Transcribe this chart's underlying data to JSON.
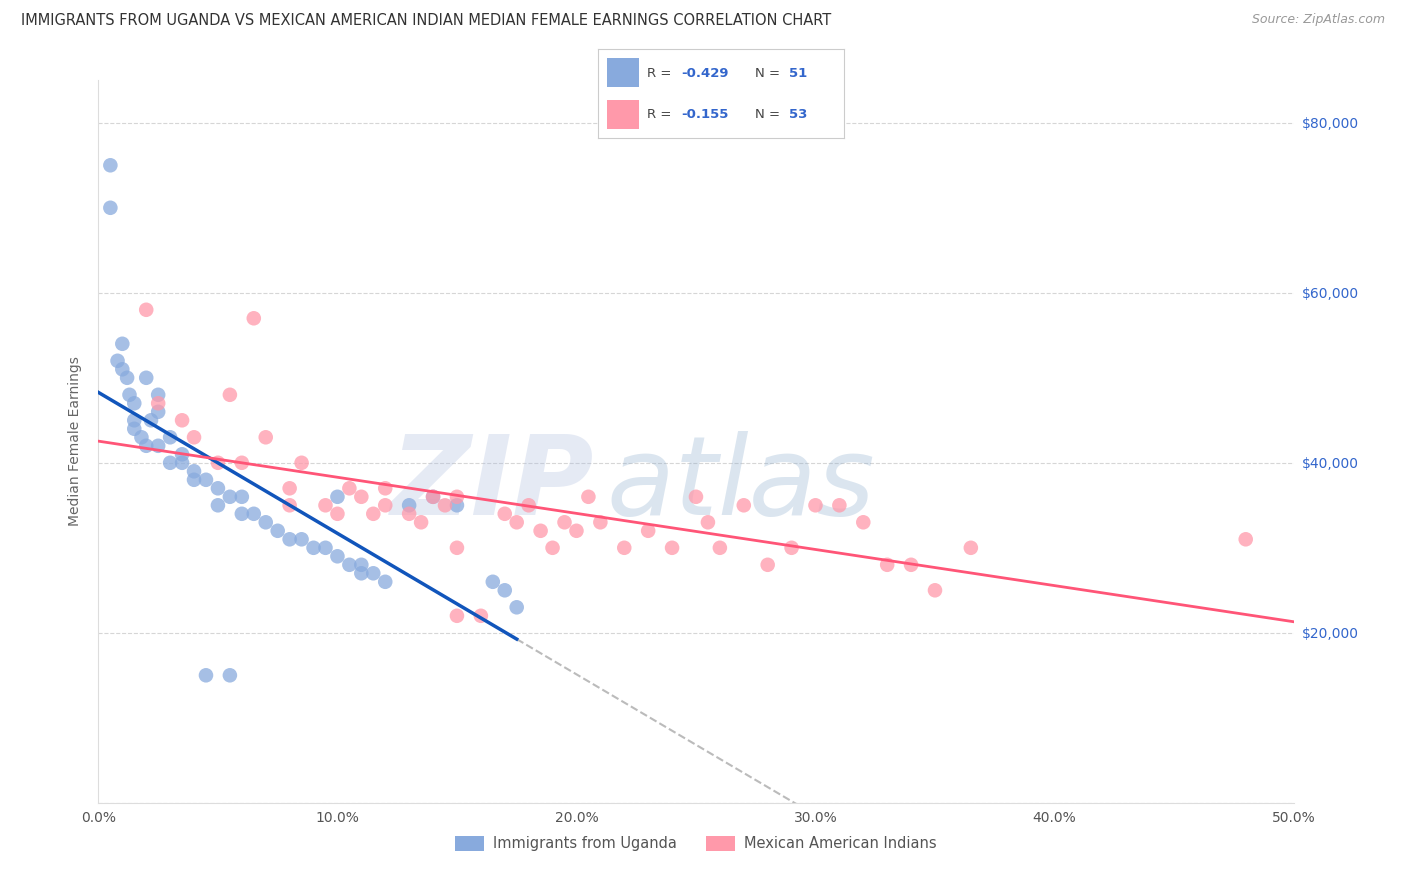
{
  "title": "IMMIGRANTS FROM UGANDA VS MEXICAN AMERICAN INDIAN MEDIAN FEMALE EARNINGS CORRELATION CHART",
  "source": "Source: ZipAtlas.com",
  "ylabel": "Median Female Earnings",
  "xlabel_ticks": [
    "0.0%",
    "10.0%",
    "20.0%",
    "30.0%",
    "40.0%",
    "50.0%"
  ],
  "xlabel_vals": [
    0,
    10,
    20,
    30,
    40,
    50
  ],
  "ylabel_ticks": [
    "$80,000",
    "$60,000",
    "$40,000",
    "$20,000"
  ],
  "ylabel_vals": [
    80000,
    60000,
    40000,
    20000
  ],
  "watermark_zip": "ZIP",
  "watermark_atlas": "atlas",
  "legend_label_uganda": "Immigrants from Uganda",
  "legend_label_mexican": "Mexican American Indians",
  "blue_scatter_color": "#88AADD",
  "pink_scatter_color": "#FF99AA",
  "blue_line_color": "#1155BB",
  "pink_line_color": "#FF5577",
  "gray_dash_color": "#BBBBBB",
  "text_color_blue": "#3366CC",
  "title_color": "#333333",
  "source_color": "#999999",
  "grid_color": "#CCCCCC",
  "background": "#FFFFFF",
  "uganda_x": [
    0.5,
    0.5,
    0.8,
    1.0,
    1.0,
    1.2,
    1.3,
    1.5,
    1.5,
    1.5,
    1.8,
    2.0,
    2.0,
    2.2,
    2.5,
    2.5,
    2.5,
    3.0,
    3.0,
    3.5,
    3.5,
    4.0,
    4.0,
    4.5,
    5.0,
    5.0,
    5.5,
    6.0,
    6.0,
    6.5,
    7.0,
    7.5,
    8.0,
    8.5,
    9.0,
    9.5,
    10.0,
    10.5,
    11.0,
    11.0,
    11.5,
    12.0,
    13.0,
    14.0,
    15.0,
    16.5,
    17.0,
    17.5,
    4.5,
    5.5,
    10.0
  ],
  "uganda_y": [
    75000,
    70000,
    52000,
    54000,
    51000,
    50000,
    48000,
    47000,
    45000,
    44000,
    43000,
    42000,
    50000,
    45000,
    42000,
    48000,
    46000,
    40000,
    43000,
    40000,
    41000,
    39000,
    38000,
    38000,
    37000,
    35000,
    36000,
    34000,
    36000,
    34000,
    33000,
    32000,
    31000,
    31000,
    30000,
    30000,
    29000,
    28000,
    28000,
    27000,
    27000,
    26000,
    35000,
    36000,
    35000,
    26000,
    25000,
    23000,
    15000,
    15000,
    36000
  ],
  "mexican_x": [
    2.0,
    2.5,
    3.5,
    4.0,
    5.0,
    5.5,
    6.0,
    7.0,
    8.0,
    8.0,
    8.5,
    9.5,
    10.0,
    10.5,
    11.0,
    11.5,
    12.0,
    12.0,
    13.0,
    13.5,
    14.0,
    14.5,
    15.0,
    15.0,
    16.0,
    17.0,
    17.5,
    18.0,
    18.5,
    19.0,
    19.5,
    20.0,
    20.5,
    21.0,
    22.0,
    23.0,
    24.0,
    25.0,
    25.5,
    26.0,
    27.0,
    28.0,
    29.0,
    30.0,
    31.0,
    32.0,
    33.0,
    34.0,
    35.0,
    36.5,
    48.0,
    15.0,
    6.5
  ],
  "mexican_y": [
    58000,
    47000,
    45000,
    43000,
    40000,
    48000,
    40000,
    43000,
    37000,
    35000,
    40000,
    35000,
    34000,
    37000,
    36000,
    34000,
    37000,
    35000,
    34000,
    33000,
    36000,
    35000,
    22000,
    36000,
    22000,
    34000,
    33000,
    35000,
    32000,
    30000,
    33000,
    32000,
    36000,
    33000,
    30000,
    32000,
    30000,
    36000,
    33000,
    30000,
    35000,
    28000,
    30000,
    35000,
    35000,
    33000,
    28000,
    28000,
    25000,
    30000,
    31000,
    30000,
    57000
  ]
}
